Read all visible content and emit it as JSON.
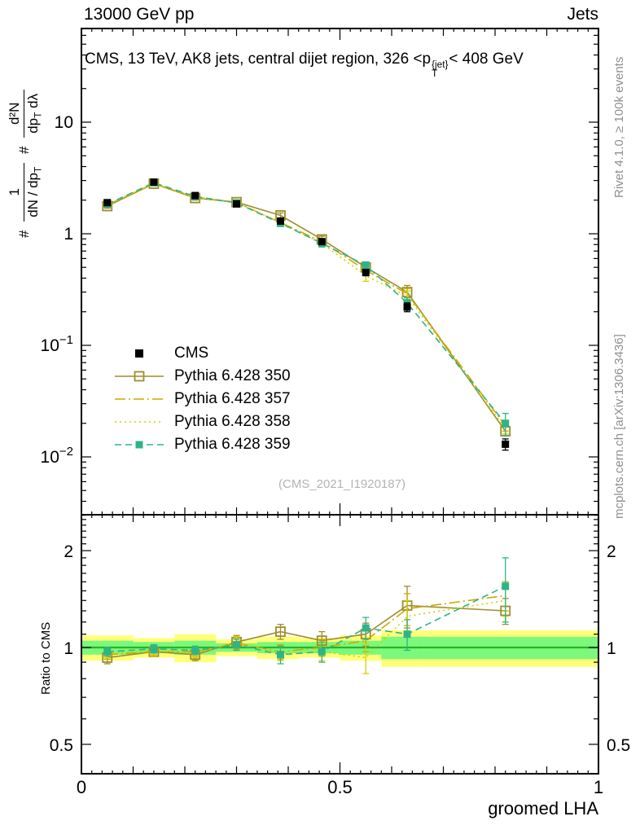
{
  "header": {
    "left": "13000 GeV pp",
    "right": "Jets"
  },
  "title": {
    "a": "CMS, 13 TeV, AK8 jets, central dijet region, 326 <p",
    "sup": "{jet}",
    "sub": "T",
    "b": "< 408 GeV"
  },
  "ylabel": {
    "hash1": "#",
    "f1num": "1",
    "f1den_a": "dN / dp",
    "f1den_sub": "T",
    "hash2": "#",
    "f2num": "d²N",
    "f2den_a": "dp",
    "f2den_sub": "T",
    "f2den_b": " dλ"
  },
  "side_notes": {
    "top": "Rivet 4.1.0, ≥ 100k events",
    "bottom": "mcplots.cern.ch [arXiv:1306.3436]"
  },
  "watermark": "(CMS_2021_I1920187)",
  "ratio_label": "Ratio to CMS",
  "chart_data": {
    "type": "line",
    "xlabel": "groomed LHA",
    "xlim": [
      0,
      1
    ],
    "xticks": [
      0,
      0.5,
      1
    ],
    "x": [
      0.05,
      0.14,
      0.22,
      0.3,
      0.385,
      0.465,
      0.55,
      0.63,
      0.82
    ],
    "main_panel": {
      "ylog": true,
      "ylim": [
        0.003,
        69
      ],
      "yticks": [
        10,
        1,
        0.1,
        0.01
      ],
      "cms": {
        "label": "CMS",
        "color": "#000000",
        "y": [
          1.9,
          2.9,
          2.2,
          1.85,
          1.3,
          0.85,
          0.45,
          0.22,
          0.013
        ],
        "yerr": [
          0.1,
          0.12,
          0.1,
          0.08,
          0.07,
          0.05,
          0.03,
          0.02,
          0.0015
        ]
      },
      "series": [
        {
          "name": "Pythia 6.428 350",
          "color": "#9e8e2e",
          "dash": "solid",
          "marker": "open-square",
          "y": [
            1.77,
            2.81,
            2.09,
            1.92,
            1.46,
            0.89,
            0.5,
            0.3,
            0.017
          ],
          "ratio": [
            0.93,
            0.97,
            0.95,
            1.04,
            1.12,
            1.05,
            1.1,
            1.35,
            1.3
          ],
          "ratio_err": [
            0.04,
            0.03,
            0.04,
            0.05,
            0.06,
            0.07,
            0.09,
            0.2,
            0.12
          ]
        },
        {
          "name": "Pythia 6.428 357",
          "color": "#ccaa00",
          "dash": "dashdot",
          "marker": "none",
          "y": [
            1.81,
            2.81,
            2.13,
            1.91,
            1.26,
            0.85,
            0.47,
            0.29,
            0.019
          ],
          "ratio": [
            0.95,
            0.97,
            0.97,
            1.03,
            0.97,
            1.0,
            1.05,
            1.32,
            1.45
          ],
          "ratio_err": [
            0.03,
            0.03,
            0.03,
            0.04,
            0.05,
            0.06,
            0.08,
            0.15,
            0.15
          ]
        },
        {
          "name": "Pythia 6.428 358",
          "color": "#d6cf00",
          "dash": "dot",
          "marker": "none",
          "y": [
            1.82,
            2.84,
            2.11,
            1.92,
            1.25,
            0.82,
            0.42,
            0.275,
            0.018
          ],
          "ratio": [
            0.96,
            0.98,
            0.96,
            1.04,
            0.96,
            0.97,
            0.93,
            1.25,
            1.4
          ],
          "ratio_err": [
            0.03,
            0.03,
            0.03,
            0.04,
            0.05,
            0.06,
            0.1,
            0.15,
            0.15
          ]
        },
        {
          "name": "Pythia 6.428 359",
          "color": "#2eb487",
          "dash": "dash",
          "marker": "filled-square",
          "y": [
            1.84,
            2.87,
            2.16,
            1.89,
            1.24,
            0.82,
            0.52,
            0.24,
            0.02
          ],
          "ratio": [
            0.97,
            0.99,
            0.98,
            1.02,
            0.95,
            0.97,
            1.15,
            1.1,
            1.55
          ],
          "ratio_err": [
            0.03,
            0.03,
            0.03,
            0.04,
            0.06,
            0.07,
            0.09,
            0.12,
            0.35
          ]
        }
      ]
    },
    "ratio_panel": {
      "ylog": true,
      "ylim": [
        0.405,
        2.59
      ],
      "yticks": [
        2,
        1,
        0.5
      ],
      "band_bins": [
        0,
        0.1,
        0.18,
        0.26,
        0.34,
        0.42,
        0.5,
        0.58,
        0.66,
        1.0
      ],
      "yellow_lo": [
        0.91,
        0.93,
        0.9,
        0.94,
        0.92,
        0.93,
        0.91,
        0.87,
        0.87
      ],
      "yellow_hi": [
        1.09,
        1.07,
        1.1,
        1.06,
        1.08,
        1.07,
        1.09,
        1.13,
        1.13
      ],
      "green_lo": [
        0.95,
        0.96,
        0.95,
        0.97,
        0.96,
        0.96,
        0.95,
        0.92,
        0.92
      ],
      "green_hi": [
        1.05,
        1.04,
        1.05,
        1.03,
        1.04,
        1.04,
        1.05,
        1.08,
        1.08
      ],
      "band_colors": {
        "yellow": "#ffff78",
        "green": "#7cf87c",
        "line": "#27b427"
      }
    }
  }
}
